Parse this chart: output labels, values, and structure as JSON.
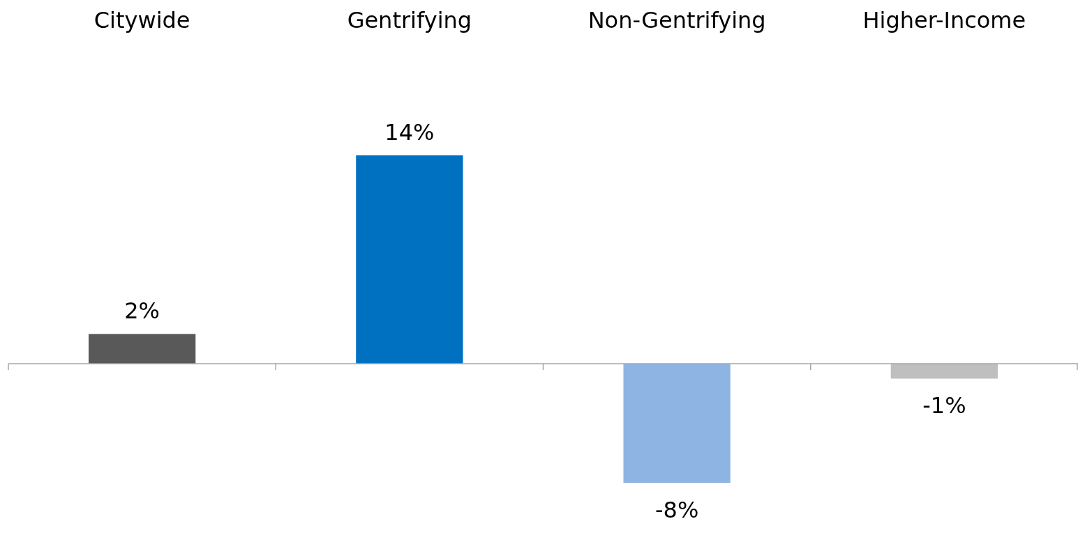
{
  "chart_data": {
    "type": "bar",
    "categories": [
      "Citywide",
      "Gentrifying",
      "Non-Gentrifying",
      "Higher-Income"
    ],
    "values": [
      2,
      14,
      -8,
      -1
    ],
    "value_labels": [
      "2%",
      "14%",
      "-8%",
      "-1%"
    ],
    "colors": [
      "#595959",
      "#0070c0",
      "#8eb4e3",
      "#bfbfbf"
    ]
  }
}
